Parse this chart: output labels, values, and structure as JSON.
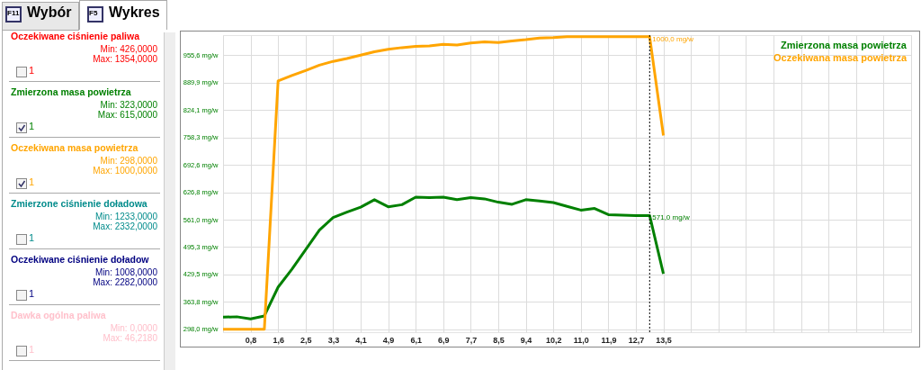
{
  "chart_data": [
    {
      "type": "other",
      "annotations": [
        "F11",
        "Wybór",
        "F5",
        "Wykres",
        "Oczekiwane ciśnienie paliwa",
        "Min: 426,0000",
        "Max: 1354,0000",
        "1",
        "Zmierzona masa powietrza",
        "Min: 323,0000",
        "Max: 615,0000",
        "1",
        "Oczekiwana masa powietrza",
        "Min: 298,0000",
        "Max: 1000,0000",
        "1",
        "Zmierzone ciśnienie doładowa",
        "Min: 1233,0000",
        "Max: 2332,0000",
        "1",
        "Oczekiwane ciśnienie doładow",
        "Min: 1008,0000",
        "Max: 2282,0000",
        "1",
        "Dawka ogólna paliwa",
        "Min: 0,0000",
        "Max: 46,2180",
        "1"
      ],
      "colors": [
        "#000000",
        "#000000",
        "#000000",
        "#000000",
        "#ff0000",
        "#ff0000",
        "#ff0000",
        "#ff0000",
        "#008000",
        "#008000",
        "#008000",
        "#008000",
        "#ffa500",
        "#ffa500",
        "#ffa500",
        "#ffa500",
        "#008b8b",
        "#008b8b",
        "#008b8b",
        "#008b8b",
        "#000080",
        "#000080",
        "#000080",
        "#000080",
        "#ffc0cb",
        "#ffc0cb",
        "#ffc0cb",
        "#ffc0cb"
      ]
    },
    {
      "type": "line",
      "categories": [
        null,
        null,
        "0,8",
        null,
        "1,6",
        null,
        "2,5",
        null,
        "3,3",
        null,
        "4,1",
        null,
        "4,9",
        null,
        "6,1",
        null,
        "6,9",
        null,
        "7,7",
        null,
        "8,5",
        null,
        "9,4",
        null,
        "10,2",
        null,
        "11,0",
        null,
        "11,9",
        null,
        "12,7",
        null,
        "13,5",
        null,
        null,
        null,
        null,
        null,
        null,
        null,
        null,
        null,
        null,
        null,
        null,
        null,
        null,
        null,
        null,
        null,
        null
      ],
      "series": [
        {
          "name": "Zmierzona masa powietrza",
          "color": "#008000",
          "values": [
            327,
            328,
            323,
            330,
            399,
            442,
            489,
            536,
            566,
            579,
            591,
            609,
            592,
            597,
            615,
            614,
            615,
            609,
            614,
            611,
            603,
            598,
            609,
            606,
            602,
            593,
            584,
            588,
            573,
            572,
            571,
            571,
            431,
            null,
            null,
            null,
            null,
            null,
            null,
            null,
            null,
            null,
            null,
            null,
            null,
            null,
            null,
            null,
            null,
            null,
            null
          ],
          "value_labels": [
            null,
            null,
            null,
            null,
            null,
            null,
            null,
            null,
            null,
            null,
            null,
            null,
            null,
            null,
            null,
            null,
            null,
            null,
            null,
            null,
            null,
            null,
            null,
            null,
            null,
            null,
            null,
            null,
            null,
            null,
            null,
            "571,0 mg/w",
            null,
            null,
            null,
            null,
            null,
            null,
            null,
            null,
            null,
            null,
            null,
            null,
            null,
            null,
            null,
            null,
            null,
            null,
            null
          ]
        },
        {
          "name": "Oczekiwana masa powietrza",
          "color": "#ffa500",
          "values": [
            298,
            298,
            298,
            298,
            894,
            907,
            919,
            932,
            941,
            948,
            956,
            964,
            970,
            974,
            977,
            978,
            982,
            980,
            985,
            988,
            986,
            990,
            993,
            997,
            998,
            1000,
            1000,
            1000,
            1000,
            1000,
            1000,
            1000,
            763,
            null,
            null,
            null,
            null,
            null,
            null,
            null,
            null,
            null,
            null,
            null,
            null,
            null,
            null,
            null,
            null,
            null,
            null
          ],
          "value_labels": [
            null,
            null,
            null,
            null,
            null,
            null,
            null,
            null,
            null,
            null,
            null,
            null,
            null,
            null,
            null,
            null,
            null,
            null,
            null,
            null,
            null,
            null,
            null,
            null,
            null,
            null,
            null,
            null,
            null,
            null,
            null,
            "1000,0 mg/w",
            null,
            null,
            null,
            null,
            null,
            null,
            null,
            null,
            null,
            null,
            null,
            null,
            null,
            null,
            null,
            null,
            null,
            null,
            null
          ]
        }
      ],
      "ylim": [
        291,
        1004
      ],
      "yticks": [
        {
          "value": 298,
          "label": "298,0 mg/w"
        },
        {
          "value": 363.8,
          "label": "363,8 mg/w"
        },
        {
          "value": 429.5,
          "label": "429,5 mg/w"
        },
        {
          "value": 495.3,
          "label": "495,3 mg/w"
        },
        {
          "value": 561,
          "label": "561,0 mg/w"
        },
        {
          "value": 626.8,
          "label": "626,8 mg/w"
        },
        {
          "value": 692.6,
          "label": "692,6 mg/w"
        },
        {
          "value": 758.3,
          "label": "758,3 mg/w"
        },
        {
          "value": 824.1,
          "label": "824,1 mg/w"
        },
        {
          "value": 889.9,
          "label": "889,9 mg/w"
        },
        {
          "value": 955.6,
          "label": "955,6 mg/w"
        }
      ],
      "grid": true,
      "legend": "top right",
      "line_style": "solid"
    }
  ]
}
